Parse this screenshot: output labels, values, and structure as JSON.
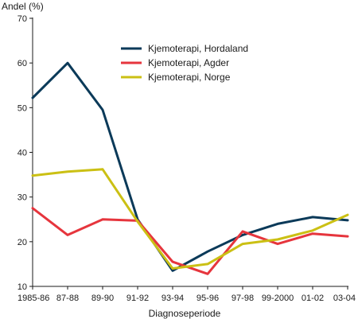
{
  "chart_data": {
    "type": "line",
    "ylabel": "Andel (%)",
    "xlabel": "Diagnoseperiode",
    "ylim": [
      10,
      70
    ],
    "yticks": [
      10,
      20,
      30,
      40,
      50,
      60,
      70
    ],
    "grid": false,
    "legend_position": "top-right",
    "categories": [
      "1985-86",
      "87-88",
      "89-90",
      "91-92",
      "93-94",
      "95-96",
      "97-98",
      "99-2000",
      "01-02",
      "03-04"
    ],
    "series": [
      {
        "name": "Kjemoterapi, Hordaland",
        "color": "#0b3a59",
        "values": [
          52.2,
          60.0,
          49.5,
          25.0,
          13.5,
          17.8,
          21.5,
          24.0,
          25.5,
          24.8
        ]
      },
      {
        "name": "Kjemoterapi, Agder",
        "color": "#e6353d",
        "values": [
          27.5,
          21.5,
          25.0,
          24.7,
          15.5,
          12.8,
          22.3,
          19.5,
          21.8,
          21.2
        ]
      },
      {
        "name": "Kjemoterapi, Norge",
        "color": "#cbc014",
        "values": [
          34.8,
          35.7,
          36.2,
          24.5,
          14.0,
          15.0,
          19.5,
          20.5,
          22.5,
          26.0
        ]
      }
    ]
  }
}
